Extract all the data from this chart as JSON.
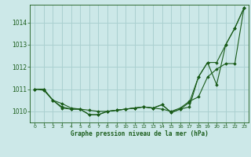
{
  "title": "Graphe pression niveau de la mer (hPa)",
  "background_color": "#cce8e8",
  "grid_color": "#aad0d0",
  "line_color": "#1a5c1a",
  "marker_color": "#1a5c1a",
  "xlim": [
    -0.5,
    23.5
  ],
  "ylim": [
    1009.5,
    1014.8
  ],
  "yticks": [
    1010,
    1011,
    1012,
    1013,
    1014
  ],
  "xticks": [
    0,
    1,
    2,
    3,
    4,
    5,
    6,
    7,
    8,
    9,
    10,
    11,
    12,
    13,
    14,
    15,
    16,
    17,
    18,
    19,
    20,
    21,
    22,
    23
  ],
  "series1_x": [
    0,
    1,
    2,
    3,
    4,
    5,
    6,
    7,
    8,
    9,
    10,
    11,
    12,
    13,
    14,
    15,
    16,
    17,
    18,
    19,
    20,
    21,
    22,
    23
  ],
  "series1_y": [
    1011.0,
    1011.0,
    1010.5,
    1010.2,
    1010.1,
    1010.1,
    1009.85,
    1009.85,
    1010.0,
    1010.05,
    1010.1,
    1010.15,
    1010.2,
    1010.15,
    1010.3,
    1009.95,
    1010.1,
    1010.2,
    1011.55,
    1012.2,
    1011.2,
    1013.0,
    1013.75,
    1014.65
  ],
  "series2_x": [
    0,
    1,
    2,
    3,
    4,
    5,
    6,
    7,
    8,
    9,
    10,
    11,
    12,
    13,
    14,
    15,
    16,
    17,
    18,
    19,
    20,
    21,
    22,
    23
  ],
  "series2_y": [
    1011.0,
    1010.95,
    1010.5,
    1010.35,
    1010.15,
    1010.1,
    1010.05,
    1010.0,
    1010.0,
    1010.05,
    1010.1,
    1010.15,
    1010.2,
    1010.15,
    1010.1,
    1010.0,
    1010.15,
    1010.45,
    1010.65,
    1011.55,
    1011.9,
    1012.15,
    1012.15,
    1014.65
  ],
  "series3_x": [
    0,
    1,
    2,
    3,
    4,
    5,
    6,
    7,
    8,
    9,
    10,
    11,
    12,
    13,
    14,
    15,
    16,
    17,
    18,
    19,
    20,
    21,
    22,
    23
  ],
  "series3_y": [
    1011.0,
    1011.0,
    1010.5,
    1010.15,
    1010.1,
    1010.1,
    1009.85,
    1009.85,
    1010.0,
    1010.05,
    1010.1,
    1010.15,
    1010.2,
    1010.15,
    1010.3,
    1009.95,
    1010.1,
    1010.4,
    1011.55,
    1012.2,
    1012.2,
    1013.0,
    1013.75,
    1014.65
  ]
}
